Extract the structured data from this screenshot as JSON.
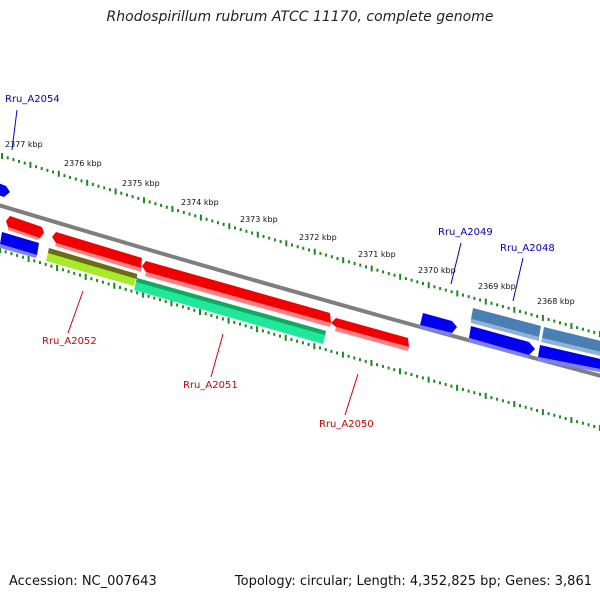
{
  "title": "Rhodospirillum rubrum ATCC 11170, complete genome",
  "footer": {
    "accession": "Accession: NC_007643",
    "summary": "Topology: circular; Length: 4,352,825 bp; Genes: 3,861"
  },
  "colors": {
    "backbone": "#7f7f7f",
    "forward_gene": "#0000ee",
    "reverse_gene": "#ee0000",
    "highlight_forward": "#4a7fb5",
    "highlight_green": "#20e89a",
    "highlight_yellowgreen": "#a8ea2a",
    "ruler": "#1a8a1a",
    "label_forward": "#0000c0",
    "label_reverse": "#d00000"
  },
  "ruler_labels": [
    "2377 kbp",
    "2376 kbp",
    "2375 kbp",
    "2374 kbp",
    "2373 kbp",
    "2372 kbp",
    "2371 kbp",
    "2370 kbp",
    "2369 kbp",
    "2368 kbp"
  ],
  "gene_labels": {
    "rru_a2054": "Rru_A2054",
    "rru_a2052": "Rru_A2052",
    "rru_a2051": "Rru_A2051",
    "rru_a2050": "Rru_A2050",
    "rru_a2049": "Rru_A2049",
    "rru_a2048": "Rru_A2048"
  }
}
